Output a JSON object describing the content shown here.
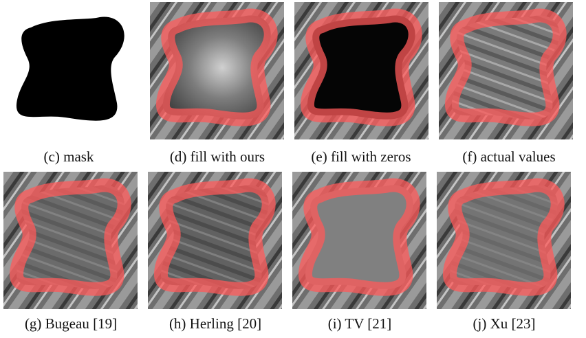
{
  "panels": [
    {
      "caption": "(c) mask"
    },
    {
      "caption": "(d) fill with ours"
    },
    {
      "caption": "(e) fill with zeros"
    },
    {
      "caption": "(f) actual values"
    },
    {
      "caption": "(g) Bugeau [19]"
    },
    {
      "caption": "(h) Herling [20]"
    },
    {
      "caption": "(i) TV [21]"
    },
    {
      "caption": "(j) Xu [23]"
    }
  ]
}
